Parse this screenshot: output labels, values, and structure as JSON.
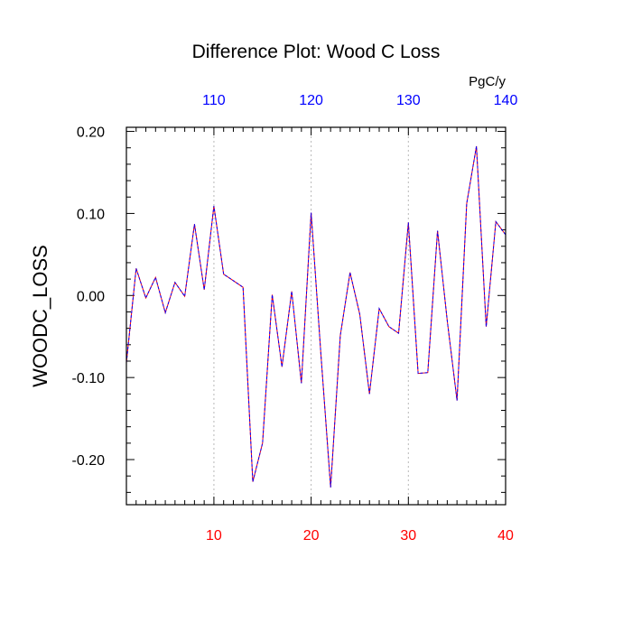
{
  "chart_data": {
    "type": "line",
    "title": "Difference Plot: Wood C Loss",
    "ylabel": "WOODC_LOSS",
    "top_axis_units": "PgC/y",
    "xlim": [
      1,
      40
    ],
    "ylim": [
      -0.255,
      0.205
    ],
    "bottom_ticks": [
      {
        "value": 10,
        "label": "10"
      },
      {
        "value": 20,
        "label": "20"
      },
      {
        "value": 30,
        "label": "30"
      },
      {
        "value": 40,
        "label": "40"
      }
    ],
    "top_ticks": [
      {
        "value": 10,
        "label": "110"
      },
      {
        "value": 20,
        "label": "120"
      },
      {
        "value": 30,
        "label": "130"
      },
      {
        "value": 40,
        "label": "140"
      }
    ],
    "y_ticks": [
      {
        "value": 0.2,
        "label": "0.20"
      },
      {
        "value": 0.1,
        "label": "0.10"
      },
      {
        "value": 0.0,
        "label": "0.00"
      },
      {
        "value": -0.1,
        "label": "-0.10"
      },
      {
        "value": -0.2,
        "label": "-0.20"
      }
    ],
    "grid": "vertical dotted at major top ticks",
    "colors": {
      "series_red": "#ff0000",
      "series_blue": "#0000ff",
      "bottom_tick_labels": "#ff0000",
      "top_tick_labels": "#0000ff",
      "axis": "#000000"
    },
    "x": [
      1,
      2,
      3,
      4,
      5,
      6,
      7,
      8,
      9,
      10,
      11,
      12,
      13,
      14,
      15,
      16,
      17,
      18,
      19,
      20,
      21,
      22,
      23,
      24,
      25,
      26,
      27,
      28,
      29,
      30,
      31,
      32,
      33,
      34,
      35,
      36,
      37,
      38,
      39,
      40
    ],
    "series": [
      {
        "values": [
          -0.082,
          0.033,
          -0.003,
          0.022,
          -0.021,
          0.016,
          -0.001,
          0.087,
          0.007,
          0.109,
          0.026,
          0.018,
          0.01,
          -0.227,
          -0.18,
          0.001,
          -0.087,
          0.005,
          -0.107,
          0.101,
          -0.071,
          -0.234,
          -0.049,
          0.028,
          -0.023,
          -0.12,
          -0.016,
          -0.038,
          -0.046,
          0.089,
          -0.095,
          -0.094,
          0.079,
          -0.031,
          -0.128,
          0.112,
          0.182,
          -0.038,
          0.09,
          0.074
        ]
      }
    ]
  }
}
